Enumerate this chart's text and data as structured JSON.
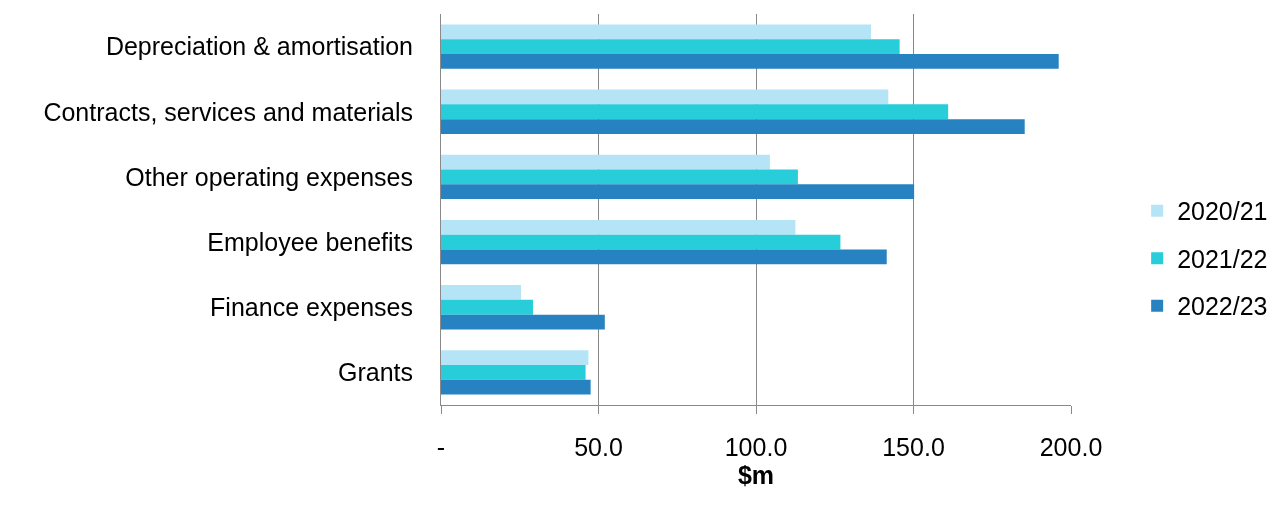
{
  "chart_data": {
    "type": "bar",
    "orientation": "horizontal",
    "xlabel": "$m",
    "categories": [
      "Depreciation & amortisation",
      "Contracts, services and materials",
      "Other operating expenses",
      "Employee benefits",
      "Finance expenses",
      "Grants"
    ],
    "series": [
      {
        "name": "2020/21",
        "color": "#b4e4f5",
        "values": [
          136.5,
          142.0,
          104.4,
          112.5,
          25.4,
          46.8
        ]
      },
      {
        "name": "2021/22",
        "color": "#27cdd8",
        "values": [
          145.6,
          161.0,
          113.3,
          126.8,
          29.2,
          45.9
        ]
      },
      {
        "name": "2022/23",
        "color": "#2682c0",
        "values": [
          196.1,
          185.3,
          150.2,
          141.5,
          52.0,
          47.5
        ]
      }
    ],
    "xlim": [
      0,
      200
    ],
    "xticks": [
      {
        "value": 0,
        "label": "-"
      },
      {
        "value": 50,
        "label": "50.0"
      },
      {
        "value": 100,
        "label": "100.0"
      },
      {
        "value": 150,
        "label": "150.0"
      },
      {
        "value": 200,
        "label": "200.0"
      }
    ],
    "grid": "x",
    "legend": "right"
  }
}
